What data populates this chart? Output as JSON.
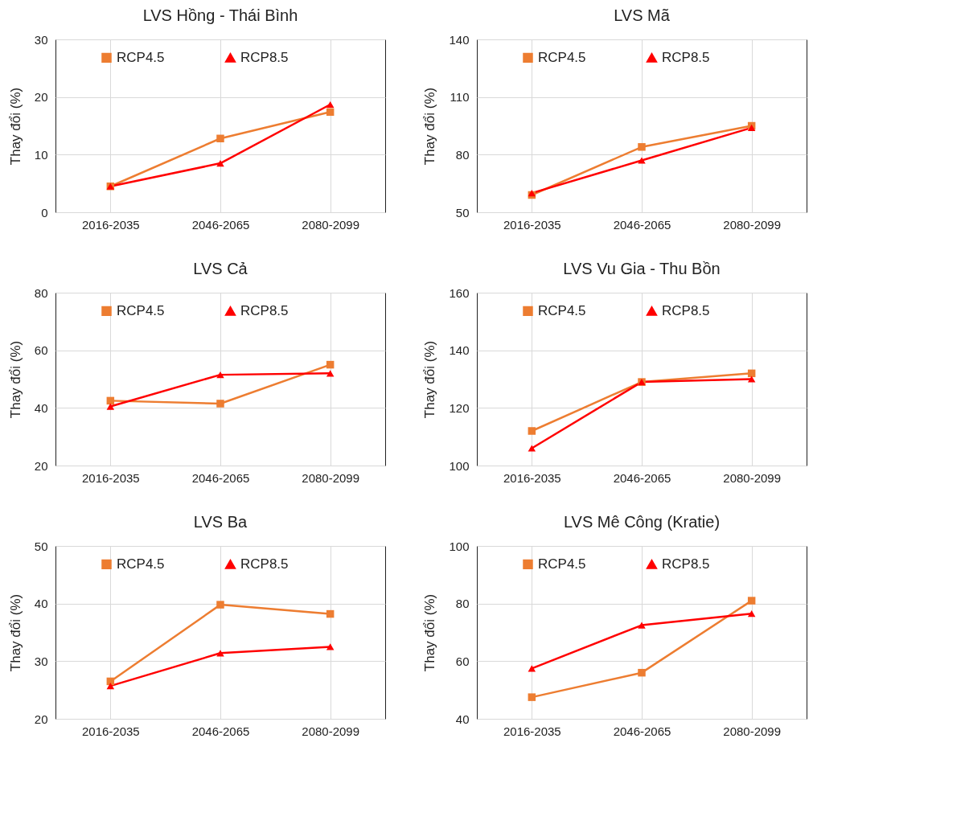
{
  "chart_data": [
    {
      "type": "line",
      "title": "LVS Hồng - Thái Bình",
      "ylabel": "Thay đổi (%)",
      "categories": [
        "2016-2035",
        "2046-2065",
        "2080-2099"
      ],
      "ylim": [
        0,
        30
      ],
      "yticks": [
        0,
        10,
        20,
        30
      ],
      "grid": true,
      "legend": "top",
      "series": [
        {
          "name": "RCP4.5",
          "color": "#ed7d31",
          "marker": "square",
          "values": [
            4.5,
            12.8,
            17.4
          ]
        },
        {
          "name": "RCP8.5",
          "color": "#ff0000",
          "marker": "triangle",
          "values": [
            4.5,
            8.5,
            18.7
          ]
        }
      ]
    },
    {
      "type": "line",
      "title": "LVS Mã",
      "ylabel": "Thay đổi (%)",
      "categories": [
        "2016-2035",
        "2046-2065",
        "2080-2099"
      ],
      "ylim": [
        50,
        140
      ],
      "yticks": [
        50,
        80,
        110,
        140
      ],
      "grid": true,
      "legend": "top",
      "series": [
        {
          "name": "RCP4.5",
          "color": "#ed7d31",
          "marker": "square",
          "values": [
            59,
            84,
            95
          ]
        },
        {
          "name": "RCP8.5",
          "color": "#ff0000",
          "marker": "triangle",
          "values": [
            60,
            77,
            94
          ]
        }
      ]
    },
    {
      "type": "line",
      "title": "LVS Cả",
      "ylabel": "Thay đổi (%)",
      "categories": [
        "2016-2035",
        "2046-2065",
        "2080-2099"
      ],
      "ylim": [
        20,
        80
      ],
      "yticks": [
        20,
        40,
        60,
        80
      ],
      "grid": true,
      "legend": "top",
      "series": [
        {
          "name": "RCP4.5",
          "color": "#ed7d31",
          "marker": "square",
          "values": [
            42.5,
            41.5,
            55
          ]
        },
        {
          "name": "RCP8.5",
          "color": "#ff0000",
          "marker": "triangle",
          "values": [
            40.5,
            51.5,
            52
          ]
        }
      ]
    },
    {
      "type": "line",
      "title": "LVS Vu Gia - Thu Bồn",
      "ylabel": "Thay đổi (%)",
      "categories": [
        "2016-2035",
        "2046-2065",
        "2080-2099"
      ],
      "ylim": [
        100,
        160
      ],
      "yticks": [
        100,
        120,
        140,
        160
      ],
      "grid": true,
      "legend": "top",
      "series": [
        {
          "name": "RCP4.5",
          "color": "#ed7d31",
          "marker": "square",
          "values": [
            112,
            129,
            132
          ]
        },
        {
          "name": "RCP8.5",
          "color": "#ff0000",
          "marker": "triangle",
          "values": [
            106,
            129,
            130
          ]
        }
      ]
    },
    {
      "type": "line",
      "title": "LVS Ba",
      "ylabel": "Thay đổi (%)",
      "categories": [
        "2016-2035",
        "2046-2065",
        "2080-2099"
      ],
      "ylim": [
        20,
        50
      ],
      "yticks": [
        20,
        30,
        40,
        50
      ],
      "grid": true,
      "legend": "top",
      "series": [
        {
          "name": "RCP4.5",
          "color": "#ed7d31",
          "marker": "square",
          "values": [
            26.5,
            39.8,
            38.2
          ]
        },
        {
          "name": "RCP8.5",
          "color": "#ff0000",
          "marker": "triangle",
          "values": [
            25.7,
            31.4,
            32.5
          ]
        }
      ]
    },
    {
      "type": "line",
      "title": "LVS Mê Công (Kratie)",
      "ylabel": "Thay đổi (%)",
      "categories": [
        "2016-2035",
        "2046-2065",
        "2080-2099"
      ],
      "ylim": [
        40,
        100
      ],
      "yticks": [
        40,
        60,
        80,
        100
      ],
      "grid": true,
      "legend": "top",
      "series": [
        {
          "name": "RCP4.5",
          "color": "#ed7d31",
          "marker": "square",
          "values": [
            47.5,
            56,
            81
          ]
        },
        {
          "name": "RCP8.5",
          "color": "#ff0000",
          "marker": "triangle",
          "values": [
            57.5,
            72.5,
            76.5
          ]
        }
      ]
    }
  ]
}
